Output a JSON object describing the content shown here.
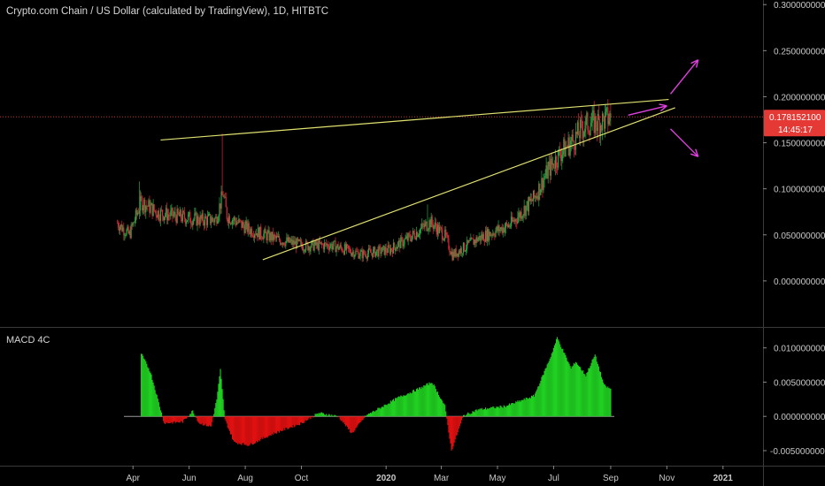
{
  "header": {
    "title": "Crypto.com Chain / US Dollar (calculated by TradingView), 1D, HITBTC"
  },
  "indicator": {
    "title": "MACD 4C"
  },
  "price_tag": {
    "value": "0.178152100",
    "countdown": "14:45:17"
  },
  "colors": {
    "up_candle": "#27a844",
    "down_candle": "#d9283a",
    "trendline": "#e0e070",
    "arrow": "#e040e0",
    "price_tag": "#e53935",
    "macd_positive": "#21d021",
    "macd_negative": "#e01010"
  },
  "chart_data": [
    {
      "type": "candlestick",
      "ylim": [
        -0.05,
        0.305
      ],
      "y_ticks": [
        "0.300000000",
        "0.250000000",
        "0.200000000",
        "0.150000000",
        "0.100000000",
        "0.050000000",
        "0.000000000"
      ],
      "x_ticks": [
        "Apr",
        "Jun",
        "Aug",
        "Oct",
        "2020",
        "Mar",
        "May",
        "Jul",
        "Sep",
        "Nov",
        "2021"
      ],
      "price_path": [
        [
          "2019-03-15",
          0.063
        ],
        [
          "2019-03-28",
          0.05
        ],
        [
          "2019-04-10",
          0.086
        ],
        [
          "2019-04-28",
          0.074
        ],
        [
          "2019-05-20",
          0.07
        ],
        [
          "2019-06-15",
          0.066
        ],
        [
          "2019-06-30",
          0.067
        ],
        [
          "2019-07-08",
          0.095
        ],
        [
          "2019-07-12",
          0.071
        ],
        [
          "2019-08-05",
          0.056
        ],
        [
          "2019-09-05",
          0.045
        ],
        [
          "2019-10-05",
          0.038
        ],
        [
          "2019-11-01",
          0.039
        ],
        [
          "2019-12-05",
          0.029
        ],
        [
          "2020-01-05",
          0.034
        ],
        [
          "2020-01-25",
          0.046
        ],
        [
          "2020-02-18",
          0.064
        ],
        [
          "2020-03-05",
          0.049
        ],
        [
          "2020-03-13",
          0.028
        ],
        [
          "2020-04-10",
          0.046
        ],
        [
          "2020-05-15",
          0.061
        ],
        [
          "2020-06-10",
          0.09
        ],
        [
          "2020-06-25",
          0.12
        ],
        [
          "2020-07-10",
          0.141
        ],
        [
          "2020-07-20",
          0.15
        ],
        [
          "2020-08-05",
          0.17
        ],
        [
          "2020-08-20",
          0.172
        ],
        [
          "2020-09-01",
          0.178
        ]
      ],
      "trendlines": [
        {
          "from": [
            "2019-05-01",
            0.153
          ],
          "to": [
            "2020-11-03",
            0.197
          ]
        },
        {
          "from": [
            "2019-08-20",
            0.023
          ],
          "to": [
            "2020-11-10",
            0.188
          ]
        }
      ],
      "arrows": [
        {
          "from": [
            "2020-09-20",
            0.18
          ],
          "to": [
            "2020-11-01",
            0.19
          ]
        },
        {
          "from": [
            "2020-11-05",
            0.203
          ],
          "to": [
            "2020-12-05",
            0.24
          ]
        },
        {
          "from": [
            "2020-11-05",
            0.165
          ],
          "to": [
            "2020-12-05",
            0.135
          ]
        }
      ],
      "last_price": 0.1781521
    },
    {
      "type": "histogram",
      "name": "MACD 4C",
      "ylim": [
        -0.0072,
        0.0128
      ],
      "y_ticks": [
        "0.010000000",
        "0.005000000",
        "0.000000000",
        "-0.005000000"
      ],
      "x": [
        "2019-04-10",
        "2019-04-20",
        "2019-05-05",
        "2019-05-25",
        "2019-06-05",
        "2019-06-12",
        "2019-06-25",
        "2019-07-01",
        "2019-07-05",
        "2019-07-10",
        "2019-07-20",
        "2019-08-05",
        "2019-09-01",
        "2019-10-01",
        "2019-10-20",
        "2019-11-10",
        "2019-11-25",
        "2019-12-10",
        "2019-12-25",
        "2020-01-15",
        "2020-02-05",
        "2020-02-20",
        "2020-03-05",
        "2020-03-12",
        "2020-03-25",
        "2020-04-10",
        "2020-05-10",
        "2020-06-10",
        "2020-06-28",
        "2020-07-05",
        "2020-07-20",
        "2020-07-25",
        "2020-08-05",
        "2020-08-15",
        "2020-08-25",
        "2020-09-01"
      ],
      "values": [
        0.0092,
        0.0065,
        -0.001,
        -0.0008,
        0.0008,
        -0.001,
        -0.0015,
        0.0025,
        0.0068,
        -0.0005,
        -0.0038,
        -0.0042,
        -0.0025,
        -0.001,
        0.0005,
        0.0,
        -0.0025,
        0.0001,
        0.0012,
        0.0028,
        0.004,
        0.005,
        0.0015,
        -0.005,
        0.0001,
        0.001,
        0.0015,
        0.003,
        0.0088,
        0.0115,
        0.007,
        0.008,
        0.006,
        0.009,
        0.0045,
        0.004
      ]
    }
  ]
}
